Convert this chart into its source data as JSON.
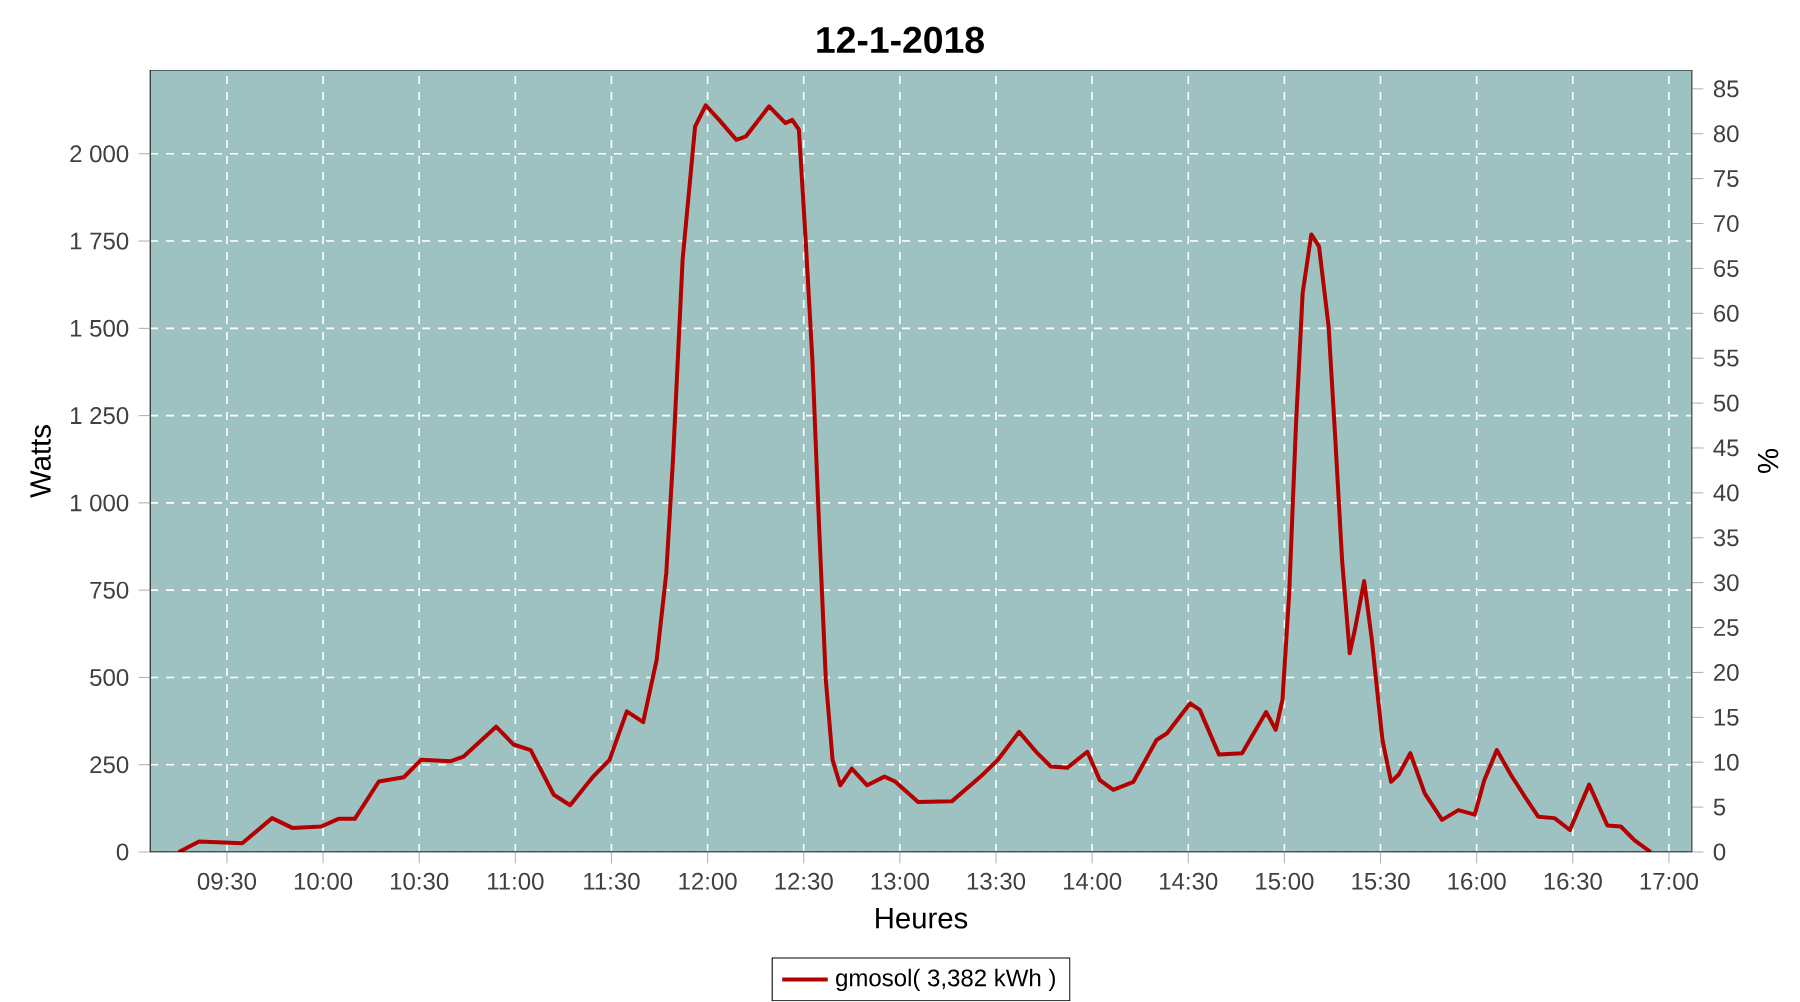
{
  "chart_data": {
    "type": "line",
    "title": "12-1-2018",
    "xlabel": "Heures",
    "ylabel": "Watts",
    "y2label": "%",
    "xlim": [
      9.1,
      17.12
    ],
    "ylim": [
      0,
      2240
    ],
    "y2lim": [
      0,
      87.1
    ],
    "xticks": [
      {
        "value": 9.5,
        "label": "09:30"
      },
      {
        "value": 10,
        "label": "10:00"
      },
      {
        "value": 10.5,
        "label": "10:30"
      },
      {
        "value": 11,
        "label": "11:00"
      },
      {
        "value": 11.5,
        "label": "11:30"
      },
      {
        "value": 12,
        "label": "12:00"
      },
      {
        "value": 12.5,
        "label": "12:30"
      },
      {
        "value": 13,
        "label": "13:00"
      },
      {
        "value": 13.5,
        "label": "13:30"
      },
      {
        "value": 14,
        "label": "14:00"
      },
      {
        "value": 14.5,
        "label": "14:30"
      },
      {
        "value": 15,
        "label": "15:00"
      },
      {
        "value": 15.5,
        "label": "15:30"
      },
      {
        "value": 16,
        "label": "16:00"
      },
      {
        "value": 16.5,
        "label": "16:30"
      },
      {
        "value": 17,
        "label": "17:00"
      }
    ],
    "yticks": [
      0,
      250,
      500,
      750,
      {
        "value": 1000,
        "label": "1 000"
      },
      {
        "value": 1250,
        "label": "1 250"
      },
      {
        "value": 1500,
        "label": "1 500"
      },
      {
        "value": 1750,
        "label": "1 750"
      },
      {
        "value": 2000,
        "label": "2 000"
      }
    ],
    "y2ticks": [
      0,
      5,
      10,
      15,
      20,
      25,
      30,
      35,
      40,
      45,
      50,
      55,
      60,
      65,
      70,
      75,
      80,
      85
    ],
    "grid": true,
    "legend": "bottom",
    "marker": "none",
    "line_style": "solid",
    "series": [
      {
        "name": "gmosol( 3,382 kWh )",
        "color": "#b30000",
        "x": [
          9.25,
          9.355,
          9.58,
          9.735,
          9.84,
          9.99,
          10.08,
          10.165,
          10.29,
          10.42,
          10.51,
          10.665,
          10.73,
          10.9,
          10.99,
          11.08,
          11.2,
          11.285,
          11.405,
          11.49,
          11.58,
          11.665,
          11.735,
          11.785,
          11.82,
          11.87,
          11.935,
          11.99,
          12.06,
          12.15,
          12.2,
          12.32,
          12.405,
          12.44,
          12.475,
          12.51,
          12.545,
          12.58,
          12.615,
          12.65,
          12.69,
          12.75,
          12.83,
          12.92,
          12.975,
          13.095,
          13.27,
          13.42,
          13.51,
          13.62,
          13.715,
          13.785,
          13.87,
          13.975,
          14.04,
          14.11,
          14.215,
          14.335,
          14.39,
          14.51,
          14.56,
          14.66,
          14.78,
          14.905,
          14.955,
          14.99,
          15.025,
          15.06,
          15.095,
          15.14,
          15.18,
          15.23,
          15.265,
          15.3,
          15.34,
          15.37,
          15.415,
          15.455,
          15.51,
          15.555,
          15.595,
          15.655,
          15.73,
          15.82,
          15.905,
          15.99,
          16.04,
          16.105,
          16.18,
          16.25,
          16.32,
          16.405,
          16.485,
          16.585,
          16.68,
          16.75,
          16.82,
          16.905
        ],
        "values": [
          0,
          30,
          25,
          97,
          69,
          73,
          95,
          95,
          202,
          214,
          264,
          260,
          273,
          359,
          308,
          292,
          164,
          134,
          216,
          264,
          403,
          372,
          550,
          798,
          1123,
          1696,
          2078,
          2139,
          2097,
          2040,
          2050,
          2136,
          2088,
          2097,
          2069,
          1754,
          1410,
          932,
          493,
          264,
          191,
          239,
          191,
          216,
          202,
          143,
          145,
          216,
          264,
          344,
          283,
          245,
          241,
          287,
          206,
          178,
          201,
          321,
          340,
          426,
          407,
          279,
          283,
          401,
          350,
          436,
          741,
          1219,
          1601,
          1769,
          1735,
          1505,
          1181,
          837,
          569,
          646,
          776,
          607,
          321,
          201,
          222,
          283,
          168,
          92,
          120,
          107,
          206,
          292,
          219,
          159,
          101,
          97,
          63,
          193,
          76,
          73,
          34,
          0
        ]
      }
    ]
  }
}
